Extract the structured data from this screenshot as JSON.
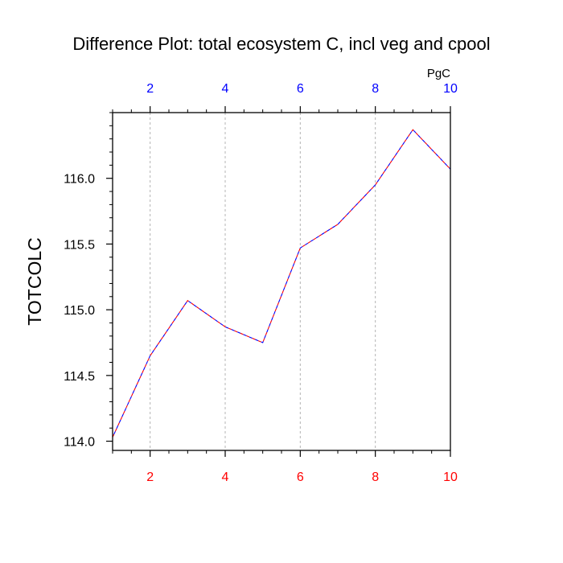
{
  "chart_data": {
    "type": "line",
    "title": "Difference Plot: total ecosystem C, incl veg and cpool",
    "units": "PgC",
    "ylabel": "TOTCOLC",
    "xlabel": "",
    "xlim": [
      1,
      10
    ],
    "ylim": [
      113.93,
      116.5
    ],
    "x_ticks": [
      2,
      4,
      6,
      8,
      10
    ],
    "x_tick_labels": [
      "2",
      "4",
      "6",
      "8",
      "10"
    ],
    "y_ticks": [
      114.0,
      114.5,
      115.0,
      115.5,
      116.0
    ],
    "y_tick_labels": [
      "114.0",
      "114.5",
      "115.0",
      "115.5",
      "116.0"
    ],
    "grid": "vertical dashed at major x ticks",
    "series": [
      {
        "x": [
          1,
          2,
          3,
          4,
          5,
          6,
          7,
          8,
          9,
          10
        ],
        "values": [
          114.03,
          114.65,
          115.07,
          114.87,
          114.75,
          115.47,
          115.65,
          115.95,
          116.37,
          116.07
        ],
        "style": "dashed"
      }
    ],
    "colors": {
      "bottom_axis_labels": "#ff0000",
      "top_axis_labels": "#0000ff",
      "line_primary": "#ff0000",
      "line_overlay": "#0000ff",
      "grid": "#b4b4b4",
      "axis": "#000000"
    }
  }
}
